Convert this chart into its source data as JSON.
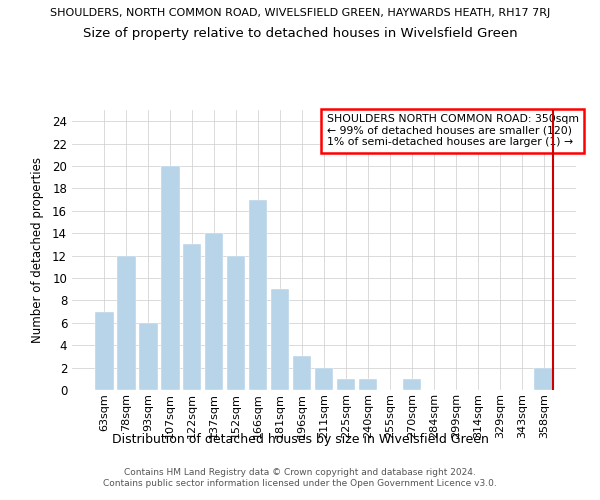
{
  "title_top": "SHOULDERS, NORTH COMMON ROAD, WIVELSFIELD GREEN, HAYWARDS HEATH, RH17 7RJ",
  "title_main": "Size of property relative to detached houses in Wivelsfield Green",
  "xlabel": "Distribution of detached houses by size in Wivelsfield Green",
  "ylabel": "Number of detached properties",
  "categories": [
    "63sqm",
    "78sqm",
    "93sqm",
    "107sqm",
    "122sqm",
    "137sqm",
    "152sqm",
    "166sqm",
    "181sqm",
    "196sqm",
    "211sqm",
    "225sqm",
    "240sqm",
    "255sqm",
    "270sqm",
    "284sqm",
    "299sqm",
    "314sqm",
    "329sqm",
    "343sqm",
    "358sqm"
  ],
  "values": [
    7,
    12,
    6,
    20,
    13,
    14,
    12,
    17,
    9,
    3,
    2,
    1,
    1,
    0,
    1,
    0,
    0,
    0,
    0,
    0,
    2
  ],
  "bar_color": "#b8d4e8",
  "bar_edgecolor": "#b8d4e8",
  "red_line_color": "#cc0000",
  "red_line_index": 20,
  "ylim": [
    0,
    25
  ],
  "yticks": [
    0,
    2,
    4,
    6,
    8,
    10,
    12,
    14,
    16,
    18,
    20,
    22,
    24
  ],
  "legend_text_line1": "SHOULDERS NORTH COMMON ROAD: 350sqm",
  "legend_text_line2": "← 99% of detached houses are smaller (120)",
  "legend_text_line3": "1% of semi-detached houses are larger (1) →",
  "footer_line1": "Contains HM Land Registry data © Crown copyright and database right 2024.",
  "footer_line2": "Contains public sector information licensed under the Open Government Licence v3.0.",
  "background_color": "#ffffff",
  "grid_color": "#cccccc"
}
